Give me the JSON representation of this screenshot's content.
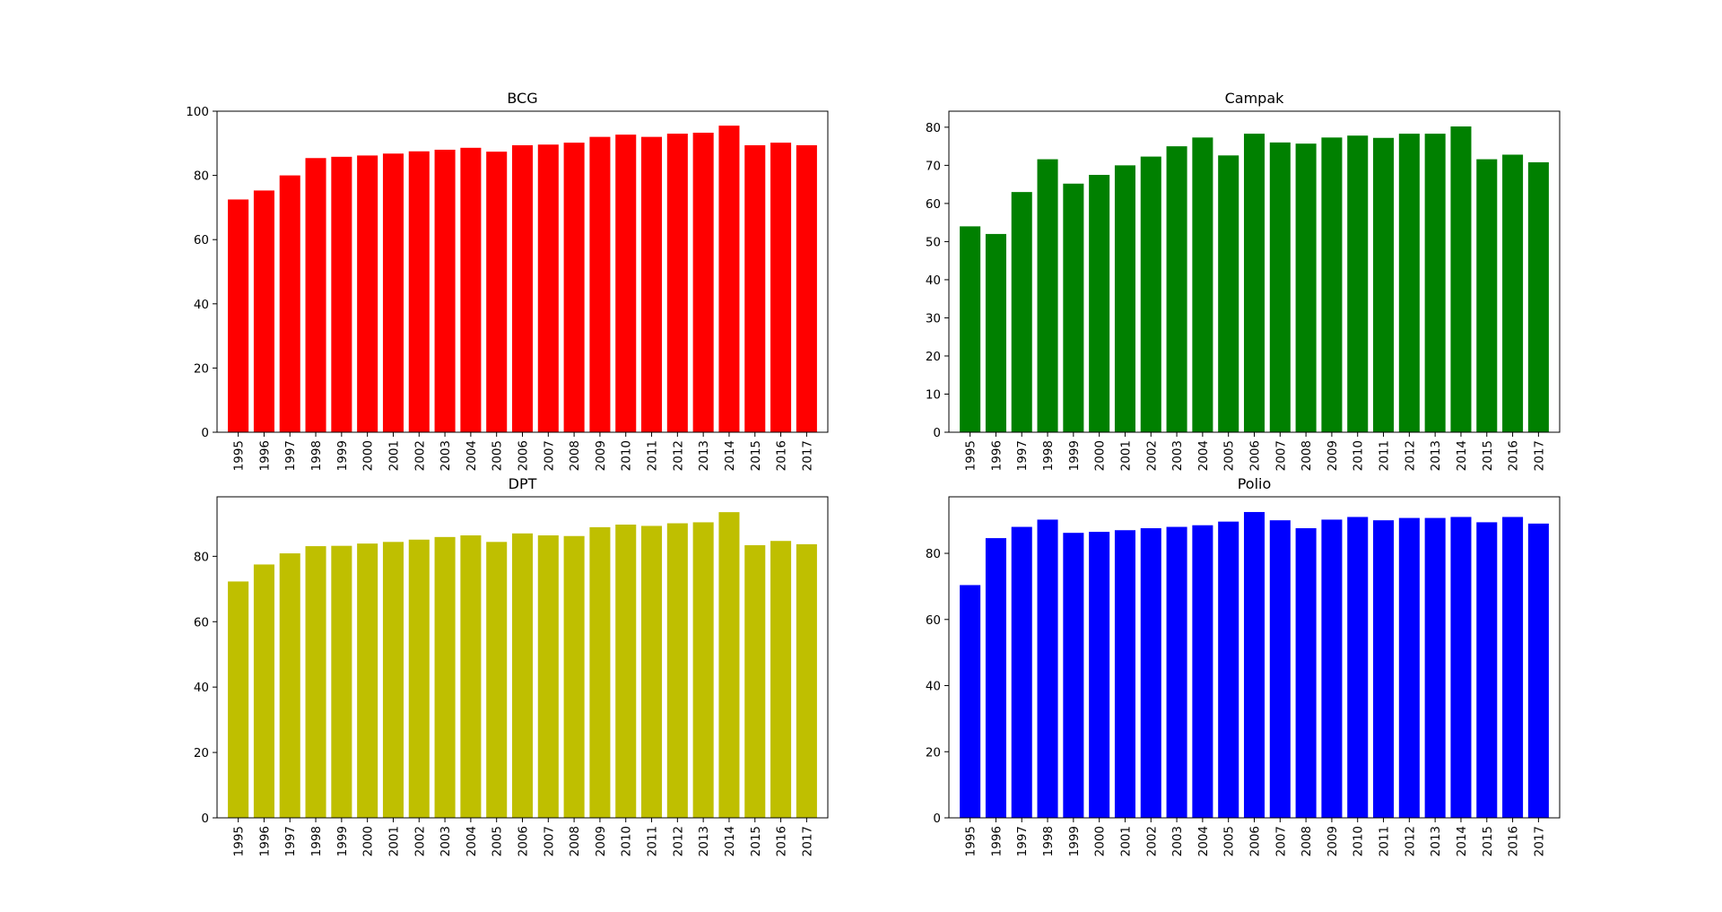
{
  "chart_data": [
    {
      "type": "bar",
      "title": "BCG",
      "color": "#ff0000",
      "categories": [
        "1995",
        "1996",
        "1997",
        "1998",
        "1999",
        "2000",
        "2001",
        "2002",
        "2003",
        "2004",
        "2005",
        "2006",
        "2007",
        "2008",
        "2009",
        "2010",
        "2011",
        "2012",
        "2013",
        "2014",
        "2015",
        "2016",
        "2017"
      ],
      "values": [
        72.5,
        75.3,
        80.0,
        85.4,
        85.8,
        86.2,
        86.8,
        87.5,
        88.0,
        88.6,
        87.4,
        89.4,
        89.6,
        90.2,
        92.0,
        92.7,
        92.0,
        93.0,
        93.3,
        95.5,
        89.4,
        90.2,
        89.4
      ],
      "yticks": [
        0,
        20,
        40,
        60,
        80,
        100
      ],
      "ylim": [
        0,
        100
      ],
      "xlabel": "",
      "ylabel": ""
    },
    {
      "type": "bar",
      "title": "Campak",
      "color": "#008000",
      "categories": [
        "1995",
        "1996",
        "1997",
        "1998",
        "1999",
        "2000",
        "2001",
        "2002",
        "2003",
        "2004",
        "2005",
        "2006",
        "2007",
        "2008",
        "2009",
        "2010",
        "2011",
        "2012",
        "2013",
        "2014",
        "2015",
        "2016",
        "2017"
      ],
      "values": [
        54.0,
        52.0,
        63.0,
        71.6,
        65.2,
        67.5,
        70.0,
        72.3,
        75.0,
        77.3,
        72.6,
        78.3,
        76.0,
        75.7,
        77.3,
        77.8,
        77.2,
        78.3,
        78.3,
        80.2,
        71.6,
        72.8,
        70.8
      ],
      "yticks": [
        0,
        10,
        20,
        30,
        40,
        50,
        60,
        70,
        80
      ],
      "ylim": [
        0,
        84.2
      ],
      "xlabel": "",
      "ylabel": ""
    },
    {
      "type": "bar",
      "title": "DPT",
      "color": "#bfbf00",
      "categories": [
        "1995",
        "1996",
        "1997",
        "1998",
        "1999",
        "2000",
        "2001",
        "2002",
        "2003",
        "2004",
        "2005",
        "2006",
        "2007",
        "2008",
        "2009",
        "2010",
        "2011",
        "2012",
        "2013",
        "2014",
        "2015",
        "2016",
        "2017"
      ],
      "values": [
        72.3,
        77.5,
        80.9,
        83.1,
        83.2,
        83.9,
        84.4,
        85.1,
        85.9,
        86.4,
        84.4,
        87.0,
        86.4,
        86.2,
        88.9,
        89.7,
        89.3,
        90.1,
        90.4,
        93.5,
        83.4,
        84.7,
        83.7
      ],
      "yticks": [
        0,
        20,
        40,
        60,
        80
      ],
      "ylim": [
        0,
        98.2
      ],
      "xlabel": "",
      "ylabel": ""
    },
    {
      "type": "bar",
      "title": "Polio",
      "color": "#0000ff",
      "categories": [
        "1995",
        "1996",
        "1997",
        "1998",
        "1999",
        "2000",
        "2001",
        "2002",
        "2003",
        "2004",
        "2005",
        "2006",
        "2007",
        "2008",
        "2009",
        "2010",
        "2011",
        "2012",
        "2013",
        "2014",
        "2015",
        "2016",
        "2017"
      ],
      "values": [
        70.4,
        84.6,
        88.0,
        90.2,
        86.2,
        86.5,
        87.0,
        87.6,
        88.0,
        88.5,
        89.6,
        92.5,
        90.0,
        87.6,
        90.2,
        91.0,
        90.0,
        90.7,
        90.7,
        91.0,
        89.4,
        91.0,
        89.0
      ],
      "yticks": [
        0,
        20,
        40,
        60,
        80
      ],
      "ylim": [
        0,
        97.1
      ],
      "xlabel": "",
      "ylabel": ""
    }
  ]
}
